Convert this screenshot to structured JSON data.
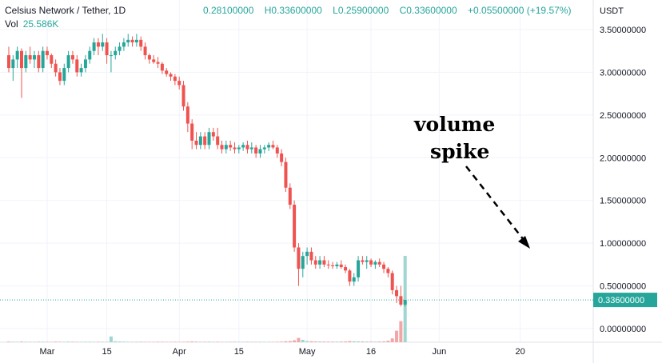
{
  "header": {
    "symbol": "Celsius Network / Tether, 1D",
    "open": "0.28100000",
    "high": "H0.33600000",
    "low": "L0.25900000",
    "close": "C0.33600000",
    "change": "+0.05500000 (+19.57%)",
    "vol_label": "Vol",
    "vol_value": "25.586K"
  },
  "annotation": {
    "line1": "volume",
    "line2": "spike"
  },
  "colors": {
    "up": "#26a69a",
    "down": "#ef5350",
    "up_vol": "#9ed6d0",
    "down_vol": "#f3a6a6",
    "grid": "#f0f3fa",
    "price_line": "#26a69a"
  },
  "chart_data": {
    "type": "candlestick",
    "y_axis_unit": "USDT",
    "ylim": [
      0,
      3.5
    ],
    "y_ticks": [
      "3.50000000",
      "3.00000000",
      "2.50000000",
      "2.00000000",
      "1.50000000",
      "1.00000000",
      "0.50000000",
      "0.00000000"
    ],
    "y_tick_values": [
      3.5,
      3.0,
      2.5,
      2.0,
      1.5,
      1.0,
      0.5,
      0.0
    ],
    "x_ticks": [
      "Mar",
      "15",
      "Apr",
      "15",
      "May",
      "16",
      "Jun",
      "20"
    ],
    "x_tick_dates": [
      "2022-03-01",
      "2022-03-15",
      "2022-04-01",
      "2022-04-15",
      "2022-05-01",
      "2022-05-16",
      "2022-06-01",
      "2022-06-20"
    ],
    "last_price_label": "0.33600000",
    "last_price": 0.336,
    "grid": true,
    "start_date": "2022-02-20",
    "candles": [
      [
        3.2,
        3.3,
        3.0,
        3.05
      ],
      [
        3.05,
        3.2,
        2.9,
        3.15
      ],
      [
        3.15,
        3.3,
        3.05,
        3.25
      ],
      [
        3.25,
        3.28,
        2.7,
        3.05
      ],
      [
        3.05,
        3.25,
        3.0,
        3.2
      ],
      [
        3.2,
        3.3,
        3.1,
        3.15
      ],
      [
        3.15,
        3.25,
        3.05,
        3.2
      ],
      [
        3.2,
        3.25,
        3.0,
        3.05
      ],
      [
        3.05,
        3.3,
        3.0,
        3.25
      ],
      [
        3.25,
        3.3,
        3.15,
        3.2
      ],
      [
        3.2,
        3.22,
        3.05,
        3.1
      ],
      [
        3.1,
        3.15,
        2.95,
        3.0
      ],
      [
        3.0,
        3.05,
        2.85,
        2.9
      ],
      [
        2.9,
        3.1,
        2.85,
        3.05
      ],
      [
        3.05,
        3.25,
        3.0,
        3.2
      ],
      [
        3.2,
        3.25,
        3.1,
        3.15
      ],
      [
        3.15,
        3.2,
        2.95,
        3.0
      ],
      [
        3.0,
        3.1,
        2.95,
        3.05
      ],
      [
        3.05,
        3.2,
        3.0,
        3.15
      ],
      [
        3.15,
        3.3,
        3.1,
        3.25
      ],
      [
        3.25,
        3.4,
        3.2,
        3.35
      ],
      [
        3.35,
        3.4,
        3.2,
        3.3
      ],
      [
        3.3,
        3.45,
        3.25,
        3.35
      ],
      [
        3.35,
        3.4,
        3.1,
        3.2
      ],
      [
        3.2,
        3.25,
        3.0,
        3.2
      ],
      [
        3.2,
        3.3,
        3.15,
        3.25
      ],
      [
        3.25,
        3.35,
        3.2,
        3.3
      ],
      [
        3.3,
        3.4,
        3.25,
        3.35
      ],
      [
        3.35,
        3.45,
        3.3,
        3.38
      ],
      [
        3.38,
        3.42,
        3.3,
        3.35
      ],
      [
        3.35,
        3.45,
        3.3,
        3.38
      ],
      [
        3.38,
        3.42,
        3.25,
        3.3
      ],
      [
        3.3,
        3.35,
        3.15,
        3.2
      ],
      [
        3.2,
        3.22,
        3.1,
        3.15
      ],
      [
        3.15,
        3.2,
        3.1,
        3.12
      ],
      [
        3.12,
        3.18,
        3.05,
        3.1
      ],
      [
        3.1,
        3.12,
        2.98,
        3.02
      ],
      [
        3.02,
        3.05,
        2.95,
        2.98
      ],
      [
        2.98,
        3.0,
        2.9,
        2.95
      ],
      [
        2.95,
        2.98,
        2.85,
        2.9
      ],
      [
        2.9,
        2.95,
        2.8,
        2.85
      ],
      [
        2.85,
        2.9,
        2.55,
        2.6
      ],
      [
        2.6,
        2.65,
        2.3,
        2.4
      ],
      [
        2.4,
        2.45,
        2.1,
        2.2
      ],
      [
        2.2,
        2.3,
        2.1,
        2.15
      ],
      [
        2.15,
        2.3,
        2.1,
        2.25
      ],
      [
        2.25,
        2.3,
        2.1,
        2.15
      ],
      [
        2.15,
        2.35,
        2.1,
        2.3
      ],
      [
        2.3,
        2.35,
        2.2,
        2.25
      ],
      [
        2.25,
        2.35,
        2.1,
        2.15
      ],
      [
        2.15,
        2.2,
        2.05,
        2.1
      ],
      [
        2.1,
        2.2,
        2.05,
        2.15
      ],
      [
        2.15,
        2.2,
        2.08,
        2.12
      ],
      [
        2.12,
        2.18,
        2.05,
        2.1
      ],
      [
        2.1,
        2.15,
        2.05,
        2.12
      ],
      [
        2.12,
        2.18,
        2.08,
        2.15
      ],
      [
        2.15,
        2.2,
        2.05,
        2.1
      ],
      [
        2.1,
        2.18,
        2.05,
        2.12
      ],
      [
        2.12,
        2.15,
        2.0,
        2.05
      ],
      [
        2.05,
        2.15,
        2.0,
        2.1
      ],
      [
        2.1,
        2.15,
        2.05,
        2.12
      ],
      [
        2.12,
        2.18,
        2.08,
        2.15
      ],
      [
        2.15,
        2.2,
        2.1,
        2.12
      ],
      [
        2.12,
        2.15,
        2.0,
        2.05
      ],
      [
        2.05,
        2.1,
        1.9,
        1.95
      ],
      [
        1.95,
        2.0,
        1.6,
        1.65
      ],
      [
        1.65,
        1.7,
        1.4,
        1.45
      ],
      [
        1.45,
        1.5,
        0.9,
        0.95
      ],
      [
        0.95,
        1.0,
        0.5,
        0.7
      ],
      [
        0.7,
        0.9,
        0.6,
        0.85
      ],
      [
        0.85,
        0.95,
        0.75,
        0.9
      ],
      [
        0.9,
        0.95,
        0.75,
        0.8
      ],
      [
        0.8,
        0.85,
        0.7,
        0.75
      ],
      [
        0.75,
        0.85,
        0.7,
        0.8
      ],
      [
        0.8,
        0.85,
        0.72,
        0.75
      ],
      [
        0.75,
        0.8,
        0.7,
        0.74
      ],
      [
        0.74,
        0.78,
        0.7,
        0.73
      ],
      [
        0.73,
        0.78,
        0.7,
        0.75
      ],
      [
        0.75,
        0.8,
        0.7,
        0.72
      ],
      [
        0.72,
        0.75,
        0.65,
        0.68
      ],
      [
        0.68,
        0.7,
        0.5,
        0.55
      ],
      [
        0.55,
        0.65,
        0.5,
        0.6
      ],
      [
        0.6,
        0.85,
        0.55,
        0.8
      ],
      [
        0.8,
        0.85,
        0.75,
        0.78
      ],
      [
        0.78,
        0.85,
        0.7,
        0.8
      ],
      [
        0.8,
        0.82,
        0.72,
        0.75
      ],
      [
        0.75,
        0.8,
        0.7,
        0.78
      ],
      [
        0.78,
        0.82,
        0.72,
        0.75
      ],
      [
        0.75,
        0.78,
        0.65,
        0.7
      ],
      [
        0.7,
        0.72,
        0.6,
        0.65
      ],
      [
        0.65,
        0.68,
        0.4,
        0.45
      ],
      [
        0.45,
        0.5,
        0.3,
        0.38
      ],
      [
        0.38,
        0.5,
        0.26,
        0.281
      ],
      [
        0.281,
        0.336,
        0.259,
        0.336
      ]
    ],
    "volume_ylim": [
      0,
      900
    ],
    "volumes": [
      6,
      5,
      4,
      6,
      5,
      4,
      4,
      5,
      5,
      4,
      4,
      6,
      5,
      4,
      6,
      5,
      4,
      4,
      5,
      5,
      4,
      5,
      5,
      4,
      60,
      10,
      8,
      6,
      5,
      4,
      5,
      5,
      4,
      4,
      4,
      5,
      5,
      4,
      4,
      5,
      4,
      5,
      6,
      8,
      6,
      5,
      5,
      6,
      4,
      5,
      4,
      4,
      4,
      5,
      4,
      4,
      5,
      4,
      4,
      5,
      4,
      4,
      4,
      5,
      6,
      10,
      12,
      20,
      45,
      25,
      12,
      10,
      8,
      8,
      7,
      6,
      6,
      6,
      7,
      8,
      12,
      10,
      9,
      8,
      7,
      6,
      6,
      7,
      8,
      15,
      40,
      120,
      220,
      900
    ]
  }
}
